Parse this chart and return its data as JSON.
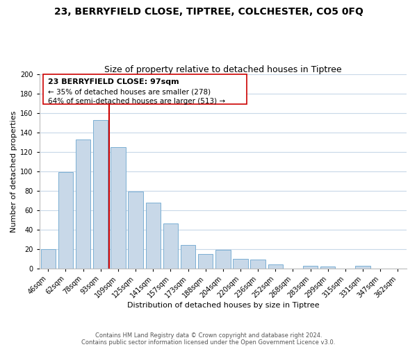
{
  "title": "23, BERRYFIELD CLOSE, TIPTREE, COLCHESTER, CO5 0FQ",
  "subtitle": "Size of property relative to detached houses in Tiptree",
  "xlabel": "Distribution of detached houses by size in Tiptree",
  "ylabel": "Number of detached properties",
  "bar_labels": [
    "46sqm",
    "62sqm",
    "78sqm",
    "93sqm",
    "109sqm",
    "125sqm",
    "141sqm",
    "157sqm",
    "173sqm",
    "188sqm",
    "204sqm",
    "220sqm",
    "236sqm",
    "252sqm",
    "268sqm",
    "283sqm",
    "299sqm",
    "315sqm",
    "331sqm",
    "347sqm",
    "362sqm"
  ],
  "bar_values": [
    20,
    99,
    133,
    153,
    125,
    79,
    68,
    46,
    24,
    15,
    19,
    10,
    9,
    4,
    0,
    3,
    2,
    0,
    3,
    0,
    0
  ],
  "bar_color": "#c8d8e8",
  "bar_edge_color": "#7bafd4",
  "vline_x": 3.5,
  "vline_color": "#cc0000",
  "ylim": [
    0,
    200
  ],
  "yticks": [
    0,
    20,
    40,
    60,
    80,
    100,
    120,
    140,
    160,
    180,
    200
  ],
  "ann_line1": "23 BERRYFIELD CLOSE: 97sqm",
  "ann_line2": "← 35% of detached houses are smaller (278)",
  "ann_line3": "64% of semi-detached houses are larger (513) →",
  "footer_line1": "Contains HM Land Registry data © Crown copyright and database right 2024.",
  "footer_line2": "Contains public sector information licensed under the Open Government Licence v3.0.",
  "background_color": "#ffffff",
  "grid_color": "#c8d8e8",
  "title_fontsize": 10,
  "subtitle_fontsize": 9,
  "label_fontsize": 8,
  "tick_fontsize": 7,
  "footer_fontsize": 6,
  "ann_fontsize": 8,
  "vline_color_red": "#cc0000"
}
